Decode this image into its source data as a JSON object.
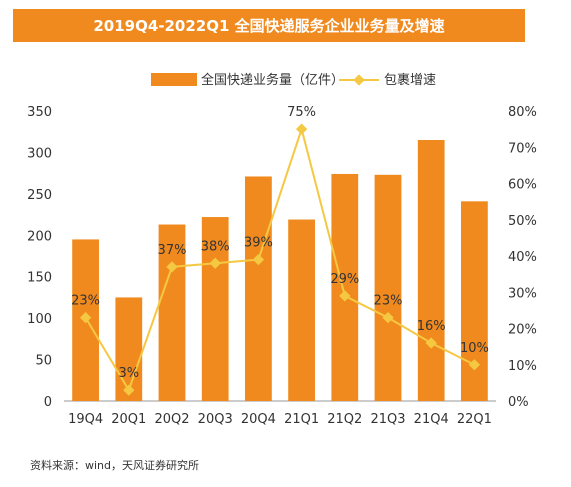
{
  "title": "2019Q4-2022Q1 全国快递服务企业业务量及增速",
  "source": "资料来源：wind，天风证券研究所",
  "colors": {
    "bar": "#f08a1e",
    "line": "#f5c842",
    "title_bg": "#f08a1e"
  },
  "chart_data": {
    "type": "bar",
    "categories": [
      "19Q4",
      "20Q1",
      "20Q2",
      "20Q3",
      "20Q4",
      "21Q1",
      "21Q2",
      "21Q3",
      "21Q4",
      "22Q1"
    ],
    "series": [
      {
        "name": "全国快递业务量（亿件）",
        "type": "bar",
        "axis": "left",
        "values": [
          195,
          125,
          213,
          222,
          271,
          219,
          274,
          273,
          315,
          241
        ]
      },
      {
        "name": "包裹增速",
        "type": "line",
        "axis": "right",
        "values": [
          23,
          3,
          37,
          38,
          39,
          75,
          29,
          23,
          16,
          10
        ],
        "labels": [
          "23%",
          "3%",
          "37%",
          "38%",
          "39%",
          "75%",
          "29%",
          "23%",
          "16%",
          "10%"
        ]
      }
    ],
    "y_left": {
      "min": 0,
      "max": 350,
      "step": 50,
      "ticks": [
        "0",
        "50",
        "100",
        "150",
        "200",
        "250",
        "300",
        "350"
      ]
    },
    "y_right": {
      "min": 0,
      "max": 80,
      "step": 10,
      "ticks": [
        "0%",
        "10%",
        "20%",
        "30%",
        "40%",
        "50%",
        "60%",
        "70%",
        "80%"
      ]
    },
    "legend_position": "top-center",
    "grid": false
  }
}
